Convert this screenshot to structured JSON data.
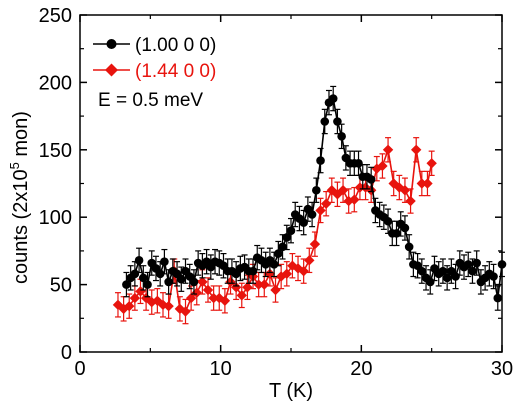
{
  "chart_data": {
    "type": "line",
    "xlabel": "T (K)",
    "ylabel_prefix": "counts (2x10",
    "ylabel_sup": "5",
    "ylabel_suffix": " mon)",
    "xlim": [
      0,
      30
    ],
    "ylim": [
      0,
      250
    ],
    "xticks": [
      0,
      10,
      20,
      30
    ],
    "yticks": [
      0,
      50,
      100,
      150,
      200,
      250
    ],
    "grid": false,
    "legend_position": "top-left",
    "annotation": "E = 0.5 meV",
    "series": [
      {
        "name": "(1.00 0 0)",
        "color": "#000000",
        "marker": "circle",
        "error": 9,
        "points": [
          [
            3.3,
            50
          ],
          [
            3.6,
            55
          ],
          [
            3.9,
            58
          ],
          [
            4.2,
            68
          ],
          [
            4.5,
            55
          ],
          [
            4.8,
            50
          ],
          [
            5.1,
            66
          ],
          [
            5.4,
            62
          ],
          [
            5.7,
            58
          ],
          [
            6.0,
            67
          ],
          [
            6.3,
            52
          ],
          [
            6.6,
            60
          ],
          [
            6.9,
            58
          ],
          [
            7.2,
            54
          ],
          [
            7.5,
            60
          ],
          [
            7.8,
            56
          ],
          [
            8.1,
            52
          ],
          [
            8.4,
            66
          ],
          [
            8.7,
            64
          ],
          [
            9.0,
            67
          ],
          [
            9.3,
            63
          ],
          [
            9.6,
            67
          ],
          [
            9.9,
            66
          ],
          [
            10.2,
            64
          ],
          [
            10.5,
            60
          ],
          [
            10.8,
            60
          ],
          [
            11.1,
            58
          ],
          [
            11.4,
            62
          ],
          [
            11.7,
            63
          ],
          [
            12.0,
            60
          ],
          [
            12.3,
            60
          ],
          [
            12.6,
            70
          ],
          [
            12.9,
            68
          ],
          [
            13.2,
            65
          ],
          [
            13.5,
            68
          ],
          [
            13.8,
            65
          ],
          [
            14.1,
            73
          ],
          [
            14.4,
            78
          ],
          [
            14.7,
            85
          ],
          [
            15.0,
            90
          ],
          [
            15.3,
            102
          ],
          [
            15.6,
            99
          ],
          [
            15.9,
            96
          ],
          [
            16.2,
            106
          ],
          [
            16.5,
            102
          ],
          [
            16.8,
            120
          ],
          [
            17.1,
            142
          ],
          [
            17.4,
            171
          ],
          [
            17.7,
            185
          ],
          [
            18.0,
            188
          ],
          [
            18.3,
            171
          ],
          [
            18.6,
            160
          ],
          [
            18.9,
            144
          ],
          [
            19.2,
            140
          ],
          [
            19.5,
            140
          ],
          [
            19.8,
            140
          ],
          [
            20.1,
            130
          ],
          [
            20.4,
            130
          ],
          [
            20.7,
            128
          ],
          [
            21.0,
            105
          ],
          [
            21.3,
            102
          ],
          [
            21.6,
            100
          ],
          [
            21.9,
            97
          ],
          [
            22.2,
            88
          ],
          [
            22.5,
            88
          ],
          [
            22.8,
            95
          ],
          [
            23.1,
            92
          ],
          [
            23.4,
            78
          ],
          [
            23.7,
            65
          ],
          [
            24.0,
            64
          ],
          [
            24.3,
            60
          ],
          [
            24.6,
            55
          ],
          [
            24.9,
            52
          ],
          [
            25.2,
            62
          ],
          [
            25.5,
            58
          ],
          [
            25.8,
            60
          ],
          [
            26.1,
            55
          ],
          [
            26.4,
            60
          ],
          [
            26.7,
            56
          ],
          [
            27.0,
            66
          ],
          [
            27.3,
            63
          ],
          [
            27.6,
            65
          ],
          [
            27.9,
            60
          ],
          [
            28.2,
            66
          ],
          [
            28.5,
            52
          ],
          [
            28.8,
            55
          ],
          [
            29.1,
            58
          ],
          [
            29.4,
            56
          ],
          [
            29.7,
            40
          ],
          [
            30.0,
            65
          ]
        ]
      },
      {
        "name": "(1.44 0 0)",
        "color": "#e8140e",
        "marker": "diamond",
        "error": 9,
        "points": [
          [
            2.7,
            35
          ],
          [
            3.1,
            32
          ],
          [
            3.5,
            34
          ],
          [
            3.9,
            40
          ],
          [
            4.3,
            45
          ],
          [
            4.7,
            40
          ],
          [
            5.1,
            37
          ],
          [
            5.5,
            38
          ],
          [
            5.9,
            35
          ],
          [
            6.3,
            34
          ],
          [
            6.7,
            60
          ],
          [
            7.1,
            32
          ],
          [
            7.5,
            30
          ],
          [
            7.9,
            40
          ],
          [
            8.3,
            44
          ],
          [
            8.7,
            52
          ],
          [
            9.1,
            46
          ],
          [
            9.5,
            40
          ],
          [
            9.9,
            40
          ],
          [
            10.3,
            38
          ],
          [
            10.7,
            52
          ],
          [
            11.1,
            48
          ],
          [
            11.5,
            42
          ],
          [
            11.9,
            48
          ],
          [
            12.3,
            56
          ],
          [
            12.7,
            50
          ],
          [
            13.1,
            50
          ],
          [
            13.5,
            58
          ],
          [
            13.9,
            46
          ],
          [
            14.3,
            56
          ],
          [
            14.7,
            58
          ],
          [
            15.1,
            64
          ],
          [
            15.5,
            62
          ],
          [
            15.9,
            60
          ],
          [
            16.3,
            68
          ],
          [
            16.7,
            80
          ],
          [
            17.1,
            105
          ],
          [
            17.5,
            110
          ],
          [
            17.9,
            120
          ],
          [
            18.3,
            117
          ],
          [
            18.7,
            120
          ],
          [
            19.1,
            112
          ],
          [
            19.5,
            113
          ],
          [
            19.9,
            122
          ],
          [
            20.3,
            122
          ],
          [
            20.7,
            120
          ],
          [
            21.1,
            136
          ],
          [
            21.5,
            138
          ],
          [
            21.9,
            150
          ],
          [
            22.3,
            125
          ],
          [
            22.7,
            122
          ],
          [
            23.1,
            120
          ],
          [
            23.5,
            112
          ],
          [
            23.9,
            150
          ],
          [
            24.3,
            125
          ],
          [
            24.7,
            125
          ],
          [
            25.0,
            140
          ]
        ]
      }
    ]
  }
}
